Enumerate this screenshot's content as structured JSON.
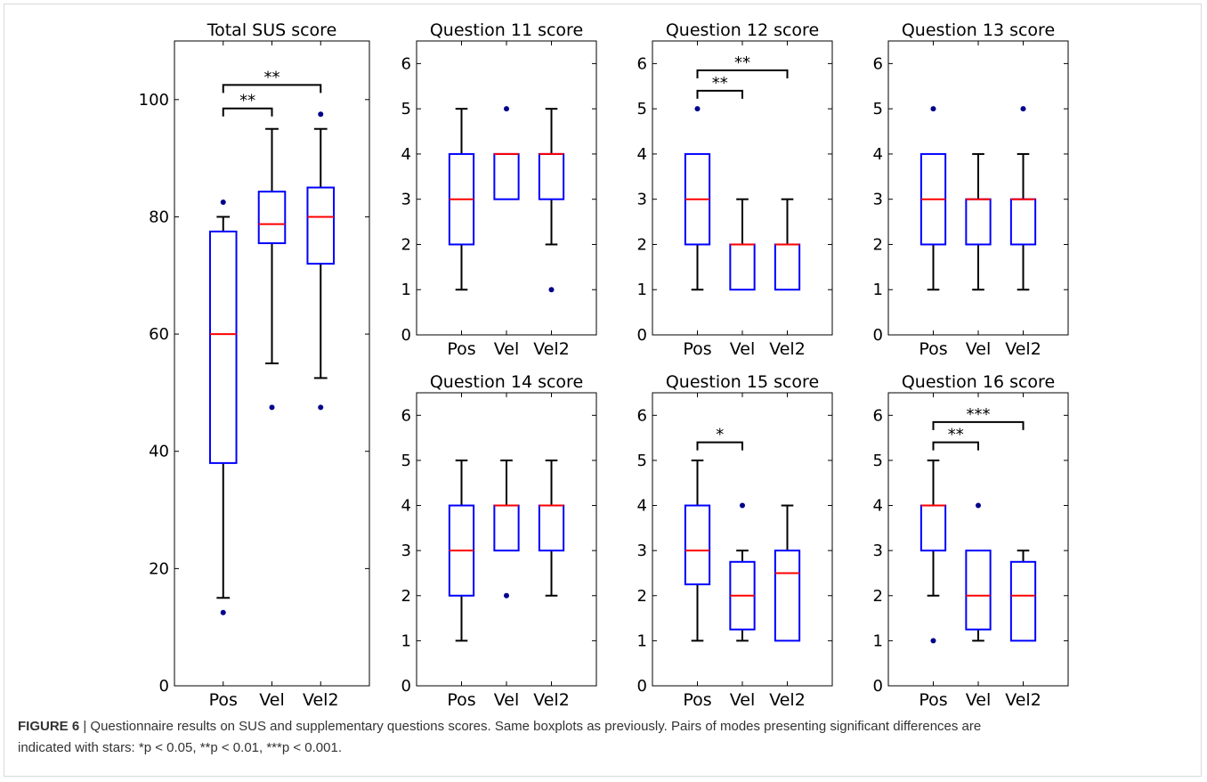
{
  "figure": {
    "label": "FIGURE 6",
    "caption_line1": " | Questionnaire results on SUS and supplementary questions scores. Same boxplots as previously. Pairs of modes presenting significant differences are",
    "caption_line2": "indicated with stars: *p < 0.05, **p < 0.01, ***p < 0.001."
  },
  "colors": {
    "box": "#0000ff",
    "median": "#ff0000",
    "whisker": "#000000",
    "outlier": "#00008b"
  },
  "chart_data": [
    {
      "id": "sus",
      "type": "boxplot",
      "title": "Total SUS score",
      "categories": [
        "Pos",
        "Vel",
        "Vel2"
      ],
      "ylim": [
        0,
        110
      ],
      "yticks": [
        0,
        20,
        40,
        60,
        80,
        100
      ],
      "boxes": [
        {
          "q1": 38,
          "median": 60,
          "q3": 77.5,
          "whislo": 15,
          "whishi": 80,
          "fliers": [
            12.5,
            82.5
          ]
        },
        {
          "q1": 75.5,
          "median": 78.75,
          "q3": 84.3,
          "whislo": 55,
          "whishi": 95,
          "fliers": [
            47.5
          ]
        },
        {
          "q1": 72,
          "median": 80,
          "q3": 85,
          "whislo": 52.5,
          "whishi": 95,
          "fliers": [
            47.5,
            97.5
          ]
        }
      ],
      "significance": [
        {
          "from": 0,
          "to": 1,
          "y": 98.5,
          "label": "**"
        },
        {
          "from": 0,
          "to": 2,
          "y": 102.5,
          "label": "**"
        }
      ]
    },
    {
      "id": "q11",
      "type": "boxplot",
      "title": "Question 11 score",
      "categories": [
        "Pos",
        "Vel",
        "Vel2"
      ],
      "ylim": [
        0,
        6.5
      ],
      "yticks": [
        0,
        1,
        2,
        3,
        4,
        5,
        6
      ],
      "boxes": [
        {
          "q1": 2,
          "median": 3,
          "q3": 4,
          "whislo": 1,
          "whishi": 5,
          "fliers": []
        },
        {
          "q1": 3,
          "median": 4,
          "q3": 4,
          "whislo": 3,
          "whishi": 4,
          "fliers": [
            5
          ]
        },
        {
          "q1": 3,
          "median": 4,
          "q3": 4,
          "whislo": 2,
          "whishi": 5,
          "fliers": [
            1
          ]
        }
      ],
      "significance": []
    },
    {
      "id": "q12",
      "type": "boxplot",
      "title": "Question 12 score",
      "categories": [
        "Pos",
        "Vel",
        "Vel2"
      ],
      "ylim": [
        0,
        6.5
      ],
      "yticks": [
        0,
        1,
        2,
        3,
        4,
        5,
        6
      ],
      "boxes": [
        {
          "q1": 2,
          "median": 3,
          "q3": 4,
          "whislo": 1,
          "whishi": 4,
          "fliers": [
            5
          ]
        },
        {
          "q1": 1,
          "median": 2,
          "q3": 2,
          "whislo": 1,
          "whishi": 3,
          "fliers": []
        },
        {
          "q1": 1,
          "median": 2,
          "q3": 2,
          "whislo": 1,
          "whishi": 3,
          "fliers": []
        }
      ],
      "significance": [
        {
          "from": 0,
          "to": 1,
          "y": 5.4,
          "label": "**"
        },
        {
          "from": 0,
          "to": 2,
          "y": 5.85,
          "label": "**"
        }
      ]
    },
    {
      "id": "q13",
      "type": "boxplot",
      "title": "Question 13 score",
      "categories": [
        "Pos",
        "Vel",
        "Vel2"
      ],
      "ylim": [
        0,
        6.5
      ],
      "yticks": [
        0,
        1,
        2,
        3,
        4,
        5,
        6
      ],
      "boxes": [
        {
          "q1": 2,
          "median": 3,
          "q3": 4,
          "whislo": 1,
          "whishi": 4,
          "fliers": [
            5
          ]
        },
        {
          "q1": 2,
          "median": 3,
          "q3": 3,
          "whislo": 1,
          "whishi": 4,
          "fliers": []
        },
        {
          "q1": 2,
          "median": 3,
          "q3": 3,
          "whislo": 1,
          "whishi": 4,
          "fliers": [
            5
          ]
        }
      ],
      "significance": []
    },
    {
      "id": "q14",
      "type": "boxplot",
      "title": "Question 14 score",
      "categories": [
        "Pos",
        "Vel",
        "Vel2"
      ],
      "ylim": [
        0,
        6.5
      ],
      "yticks": [
        0,
        1,
        2,
        3,
        4,
        5,
        6
      ],
      "boxes": [
        {
          "q1": 2,
          "median": 3,
          "q3": 4,
          "whislo": 1,
          "whishi": 5,
          "fliers": []
        },
        {
          "q1": 3,
          "median": 4,
          "q3": 4,
          "whislo": 3,
          "whishi": 5,
          "fliers": [
            2
          ]
        },
        {
          "q1": 3,
          "median": 4,
          "q3": 4,
          "whislo": 2,
          "whishi": 5,
          "fliers": []
        }
      ],
      "significance": []
    },
    {
      "id": "q15",
      "type": "boxplot",
      "title": "Question 15 score",
      "categories": [
        "Pos",
        "Vel",
        "Vel2"
      ],
      "ylim": [
        0,
        6.5
      ],
      "yticks": [
        0,
        1,
        2,
        3,
        4,
        5,
        6
      ],
      "boxes": [
        {
          "q1": 2.25,
          "median": 3,
          "q3": 4,
          "whislo": 1,
          "whishi": 5,
          "fliers": []
        },
        {
          "q1": 1.25,
          "median": 2,
          "q3": 2.75,
          "whislo": 1,
          "whishi": 3,
          "fliers": [
            4
          ]
        },
        {
          "q1": 1,
          "median": 2.5,
          "q3": 3,
          "whislo": 1,
          "whishi": 4,
          "fliers": []
        }
      ],
      "significance": [
        {
          "from": 0,
          "to": 1,
          "y": 5.4,
          "label": "*"
        }
      ]
    },
    {
      "id": "q16",
      "type": "boxplot",
      "title": "Question 16 score",
      "categories": [
        "Pos",
        "Vel",
        "Vel2"
      ],
      "ylim": [
        0,
        6.5
      ],
      "yticks": [
        0,
        1,
        2,
        3,
        4,
        5,
        6
      ],
      "boxes": [
        {
          "q1": 3,
          "median": 4,
          "q3": 4,
          "whislo": 2,
          "whishi": 5,
          "fliers": [
            1
          ]
        },
        {
          "q1": 1.25,
          "median": 2,
          "q3": 3,
          "whislo": 1,
          "whishi": 3,
          "fliers": [
            4
          ]
        },
        {
          "q1": 1,
          "median": 2,
          "q3": 2.75,
          "whislo": 1,
          "whishi": 3,
          "fliers": []
        }
      ],
      "significance": [
        {
          "from": 0,
          "to": 1,
          "y": 5.4,
          "label": "**"
        },
        {
          "from": 0,
          "to": 2,
          "y": 5.85,
          "label": "***"
        }
      ]
    }
  ]
}
